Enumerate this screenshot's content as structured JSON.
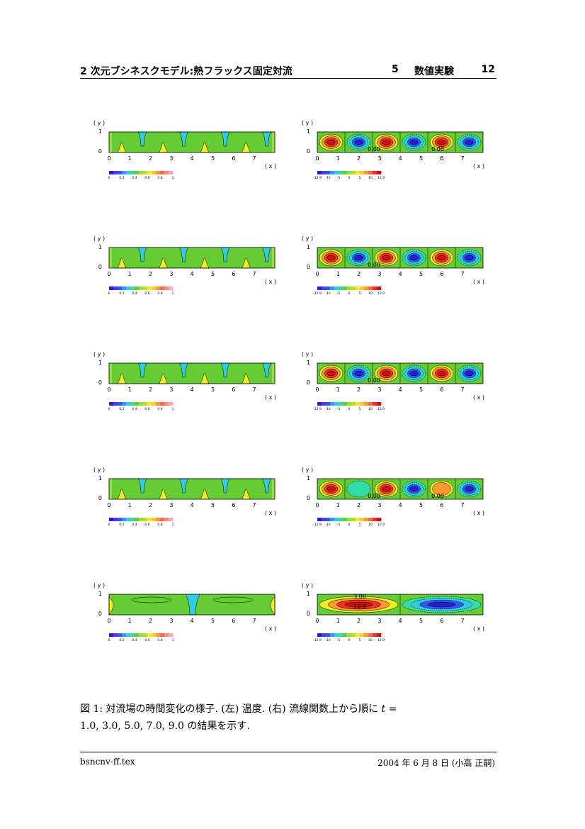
{
  "header": {
    "title": "2 次元ブシネスクモデル:熱フラックス固定対流",
    "section_number": "5",
    "section_title": "数値実験",
    "page_number": "12"
  },
  "figure": {
    "axis_labels": {
      "y": "( y )",
      "x": "( x )"
    },
    "y_ticks": [
      "0",
      "1"
    ],
    "x_ticks": [
      "0",
      "1",
      "2",
      "3",
      "4",
      "5",
      "6",
      "7"
    ],
    "temp_colorbar_ticks": [
      "0",
      "0.2",
      "0.4",
      "0.6",
      "0.8",
      "1"
    ],
    "stream_colorbar_ticks": [
      "-12.9",
      "-10",
      "-5",
      "0",
      "5",
      "10",
      "12.9"
    ],
    "panels": [
      {
        "row": 1,
        "stream_cells": [
          1,
          -1,
          1,
          -1,
          1,
          -1
        ],
        "labels": [
          "0.00",
          "0.00"
        ]
      },
      {
        "row": 2,
        "stream_cells": [
          1,
          -1,
          1,
          -1,
          1,
          -1
        ],
        "labels": [
          "0.00"
        ]
      },
      {
        "row": 3,
        "stream_cells": [
          1,
          -1,
          1,
          -1,
          1,
          -1
        ],
        "labels": [
          "0.00"
        ]
      },
      {
        "row": 4,
        "stream_cells": [
          1,
          -0.4,
          1,
          -1,
          0.5,
          -1
        ],
        "labels": [
          "0.00",
          "0.00"
        ]
      },
      {
        "row": 5,
        "stream_cells": [
          1,
          -1
        ],
        "labels": [
          "3.00",
          "10.0"
        ]
      }
    ]
  },
  "caption": {
    "fig_label": "図 1:",
    "text_part1": "対流場の時間変化の様子. (左) 温度. (右) 流線関数上から順に",
    "math_t": "t",
    "eq": "=",
    "text_part2": "1.0, 3.0, 5.0, 7.0, 9.0 の結果を示す."
  },
  "footer": {
    "filename": "bsncnv-ff.tex",
    "date": "2004 年 6 月 8 日 (小高 正嗣)"
  },
  "colors": {
    "green": "#66cc33",
    "lightgreen": "#99dd44",
    "yellow": "#eeee22",
    "cyan": "#33ccdd",
    "red": "#ee3322",
    "orange": "#ff9933",
    "blue": "#3355ee",
    "darkblue": "#2222cc"
  }
}
